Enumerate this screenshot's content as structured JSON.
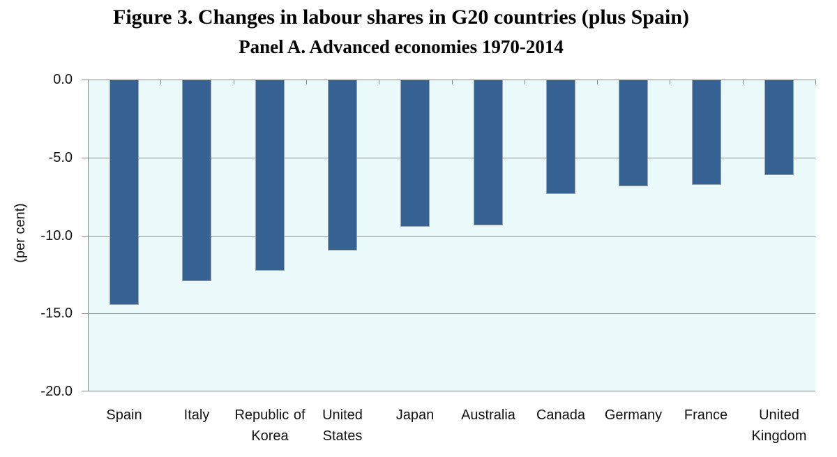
{
  "title": "Figure 3. Changes in labour shares in G20 countries (plus Spain)",
  "subtitle": "Panel A. Advanced economies 1970-2014",
  "chart_data": {
    "type": "bar",
    "title": "Figure 3. Changes in labour shares in G20 countries (plus Spain)",
    "subtitle": "Panel A. Advanced economies 1970-2014",
    "categories": [
      "Spain",
      "Italy",
      "Republic of Korea",
      "United States",
      "Japan",
      "Australia",
      "Canada",
      "Germany",
      "France",
      "United Kingdom"
    ],
    "values": [
      -14.4,
      -12.9,
      -12.2,
      -10.9,
      -9.4,
      -9.3,
      -7.3,
      -6.8,
      -6.7,
      -6.1
    ],
    "xlabel": "",
    "ylabel": "(per cent)",
    "ylim": [
      -20,
      0
    ],
    "ytick_labels": [
      "0.0",
      "-5.0",
      "-10.0",
      "-15.0",
      "-20.0"
    ],
    "grid": true,
    "legend_position": "none",
    "bar_color": "#366293",
    "bar_border_color": "#9aa7b5",
    "plot_bg_color": "#EAF9FA",
    "gridline_color": "#8a9393",
    "axis_color": "#7f8787",
    "text_color": "#111111"
  }
}
